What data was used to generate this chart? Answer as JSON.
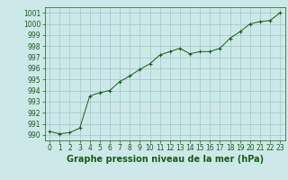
{
  "x": [
    0,
    1,
    2,
    3,
    4,
    5,
    6,
    7,
    8,
    9,
    10,
    11,
    12,
    13,
    14,
    15,
    16,
    17,
    18,
    19,
    20,
    21,
    22,
    23
  ],
  "y": [
    990.3,
    990.1,
    990.2,
    990.6,
    993.5,
    993.8,
    994.0,
    994.8,
    995.3,
    995.9,
    996.4,
    997.2,
    997.5,
    997.8,
    997.3,
    997.5,
    997.5,
    997.8,
    998.7,
    999.3,
    1000.0,
    1000.2,
    1000.3,
    1001.0
  ],
  "xlim": [
    -0.5,
    23.5
  ],
  "ylim": [
    989.5,
    1001.5
  ],
  "yticks": [
    990,
    991,
    992,
    993,
    994,
    995,
    996,
    997,
    998,
    999,
    1000,
    1001
  ],
  "xticks": [
    0,
    1,
    2,
    3,
    4,
    5,
    6,
    7,
    8,
    9,
    10,
    11,
    12,
    13,
    14,
    15,
    16,
    17,
    18,
    19,
    20,
    21,
    22,
    23
  ],
  "xlabel": "Graphe pression niveau de la mer (hPa)",
  "line_color": "#1a5c1a",
  "marker_color": "#1a5c1a",
  "bg_color": "#cce8e8",
  "grid_color": "#a0c8c8",
  "tick_fontsize": 5.5,
  "xlabel_fontsize": 7.0,
  "marker": "+"
}
